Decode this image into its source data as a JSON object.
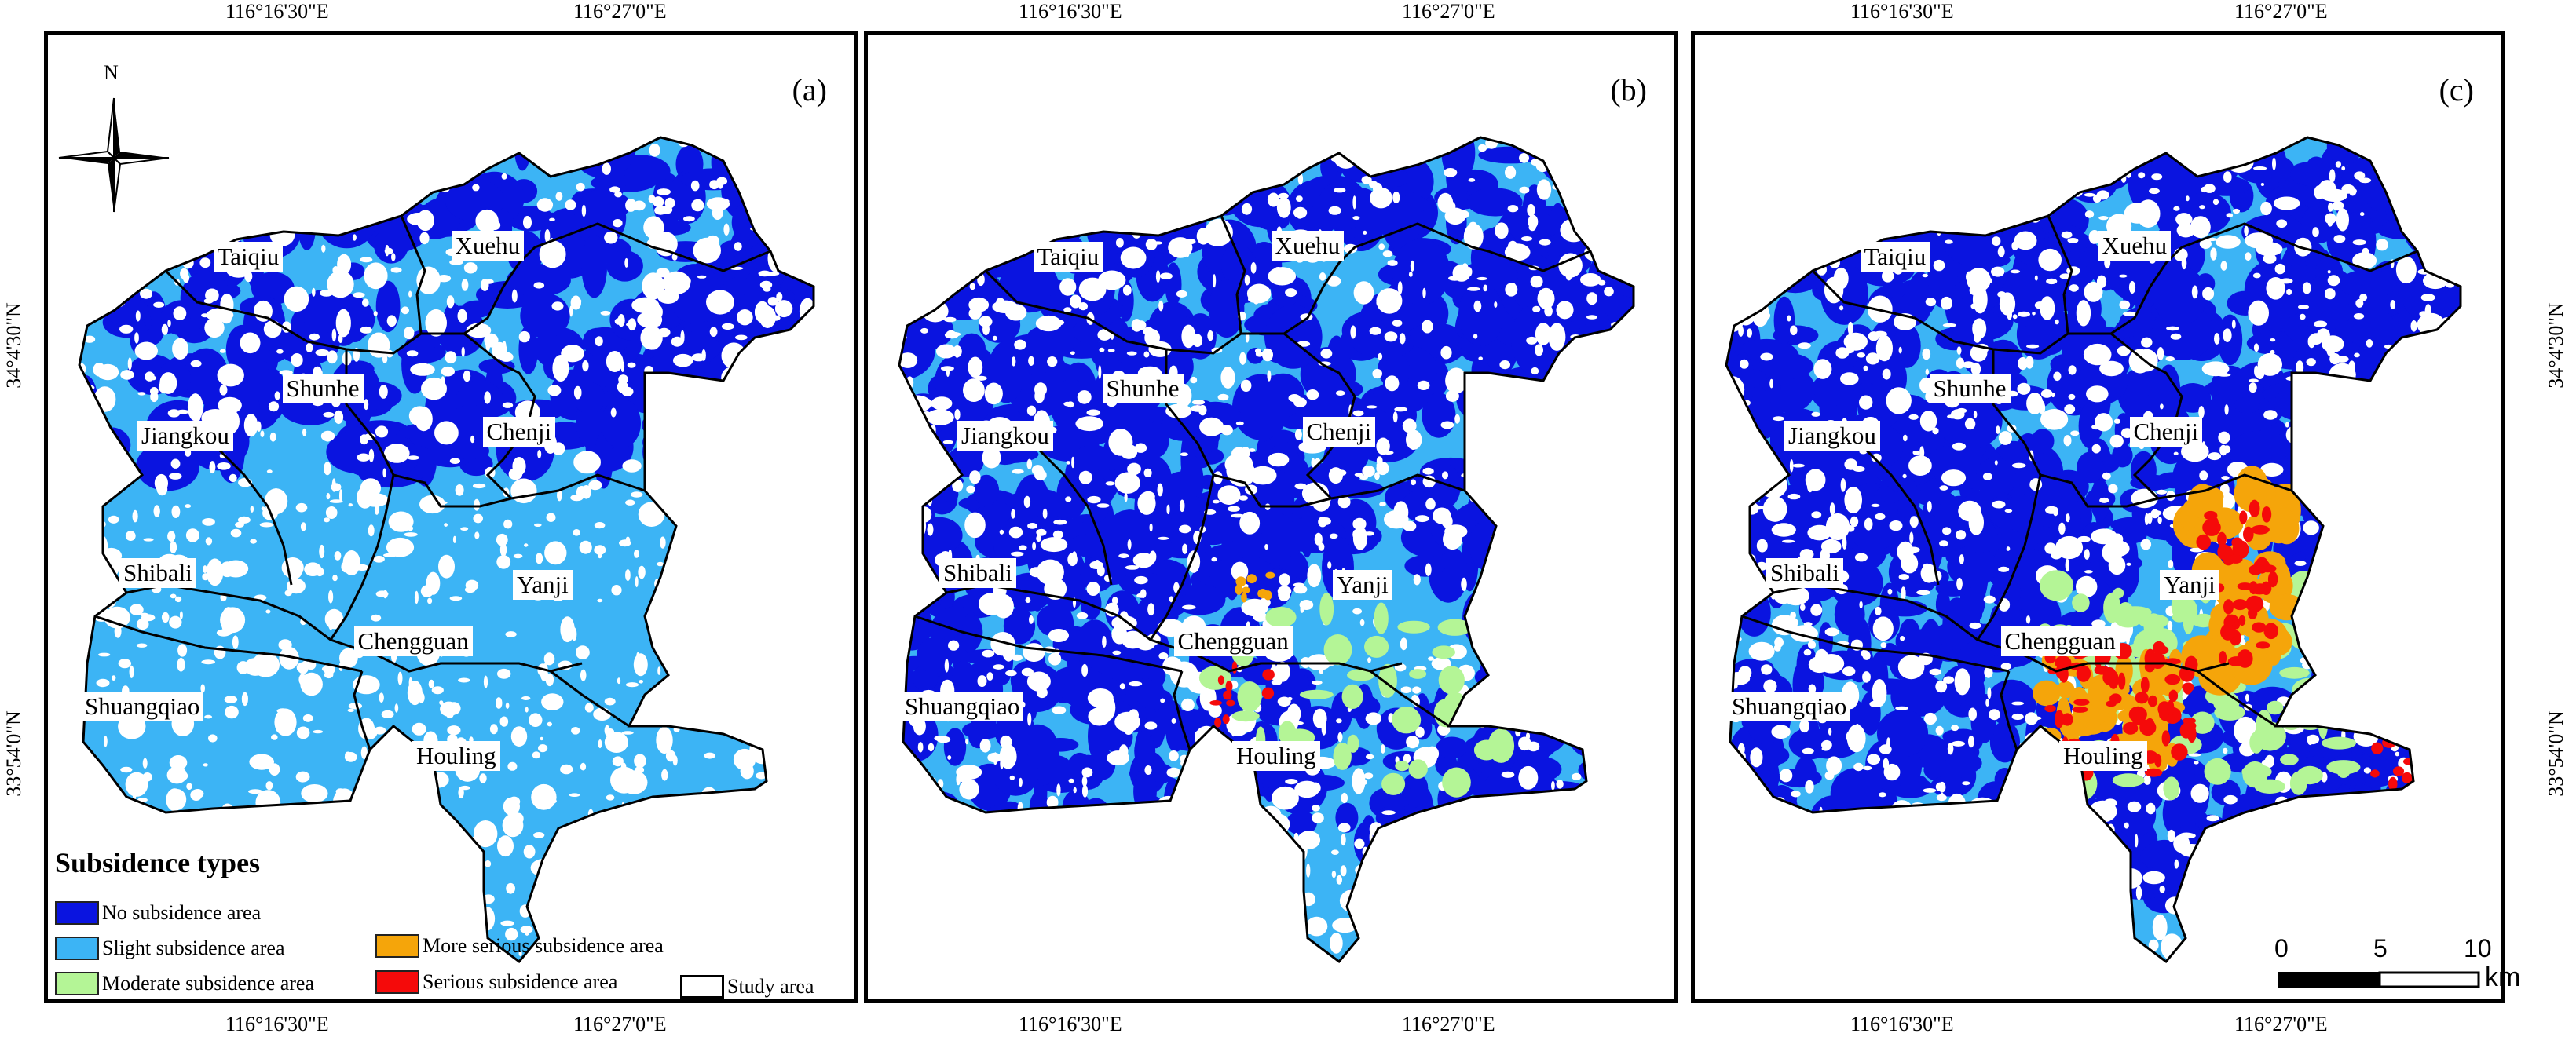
{
  "axes": {
    "lon_left": "116°16'30\"E",
    "lon_right": "116°27'0\"E",
    "lat_top": "34°4'30\"N",
    "lat_bottom": "33°54'0\"N"
  },
  "panels": [
    {
      "label": "(a)",
      "stage": 0
    },
    {
      "label": "(b)",
      "stage": 1
    },
    {
      "label": "(c)",
      "stage": 2
    }
  ],
  "towns": [
    "Taiqiu",
    "Xuehu",
    "Shunhe",
    "Jiangkou",
    "Chenji",
    "Shibali",
    "Yanji",
    "Chengguan",
    "Shuangqiao",
    "Houling"
  ],
  "north_label": "N",
  "legend": {
    "title": "Subsidence types",
    "items": [
      {
        "label": "No subsidence area",
        "color": "#0a14e0"
      },
      {
        "label": "Slight subsidence area",
        "color": "#3cb4f5"
      },
      {
        "label": "More serious subsidence area",
        "color": "#f5a50a"
      },
      {
        "label": "Moderate subsidence area",
        "color": "#b4f596"
      },
      {
        "label": "Serious subsidence area",
        "color": "#f50a0a"
      },
      {
        "label": "Study area",
        "color": "#ffffff"
      }
    ]
  },
  "scale_bar": {
    "ticks": [
      "0",
      "5",
      "10"
    ],
    "unit": "km"
  },
  "colors": {
    "none": "#0a14e0",
    "slight": "#3cb4f5",
    "moderate": "#b4f596",
    "more_serious": "#f5a50a",
    "serious": "#f50a0a",
    "boundary": "#000000"
  }
}
